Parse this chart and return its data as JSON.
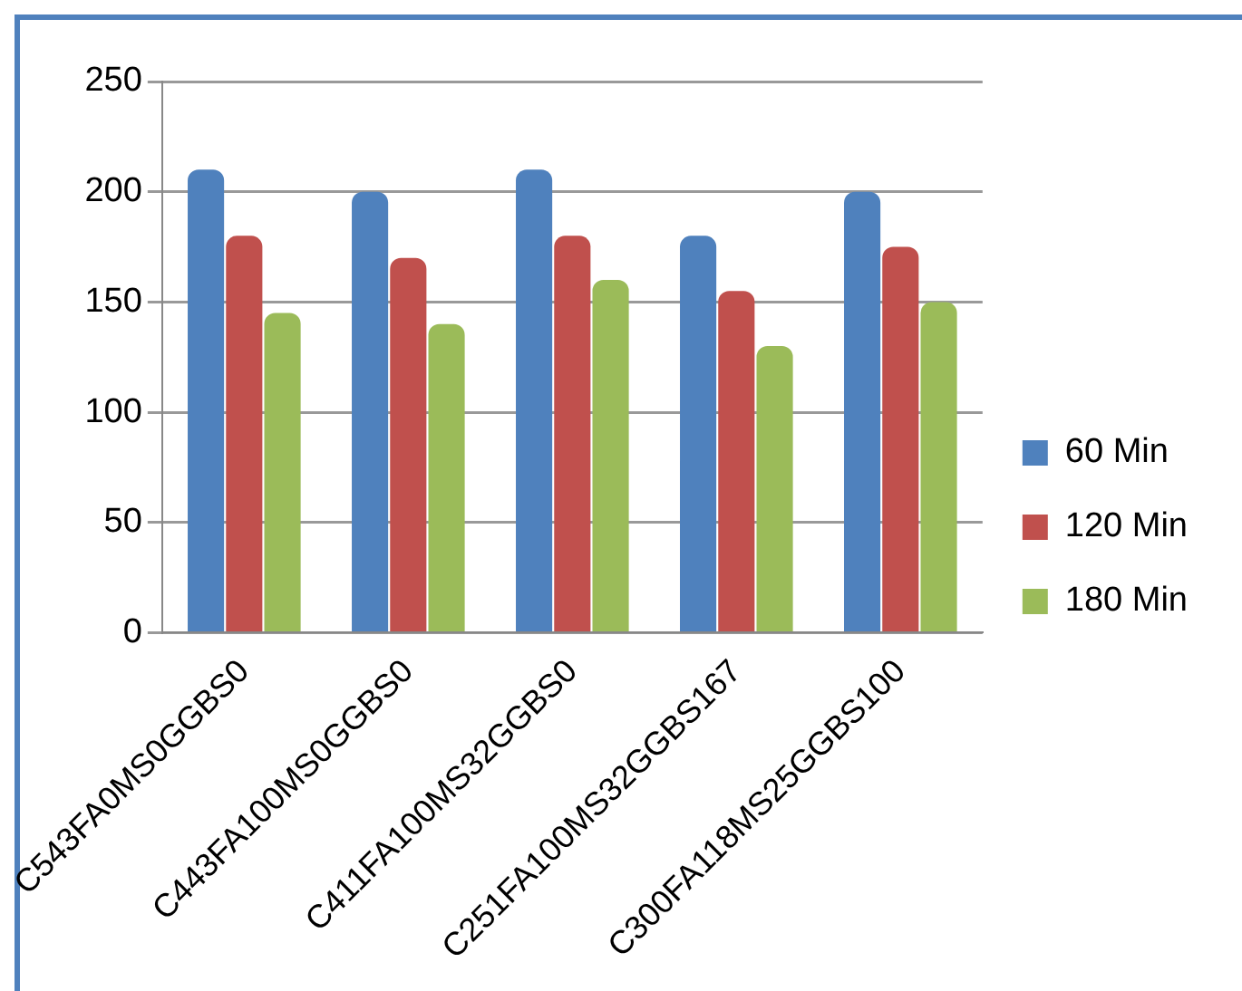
{
  "chart_data": {
    "type": "bar",
    "categories": [
      "C543FA0MS0GGBS0",
      "C443FA100MS0GGBS0",
      "C411FA100MS32GGBS0",
      "C251FA100MS32GGBS167",
      "C300FA118MS25GGBS100"
    ],
    "series": [
      {
        "name": "60 Min",
        "color": "#4f81bd",
        "values": [
          210,
          200,
          210,
          180,
          200
        ]
      },
      {
        "name": "120 Min",
        "color": "#c0504d",
        "values": [
          180,
          170,
          180,
          155,
          175
        ]
      },
      {
        "name": "180 Min",
        "color": "#9bbb59",
        "values": [
          145,
          140,
          160,
          130,
          150
        ]
      }
    ],
    "ylim": [
      0,
      250
    ],
    "yticks": [
      0,
      50,
      100,
      150,
      200,
      250
    ],
    "grid": "y",
    "legend": "right"
  }
}
